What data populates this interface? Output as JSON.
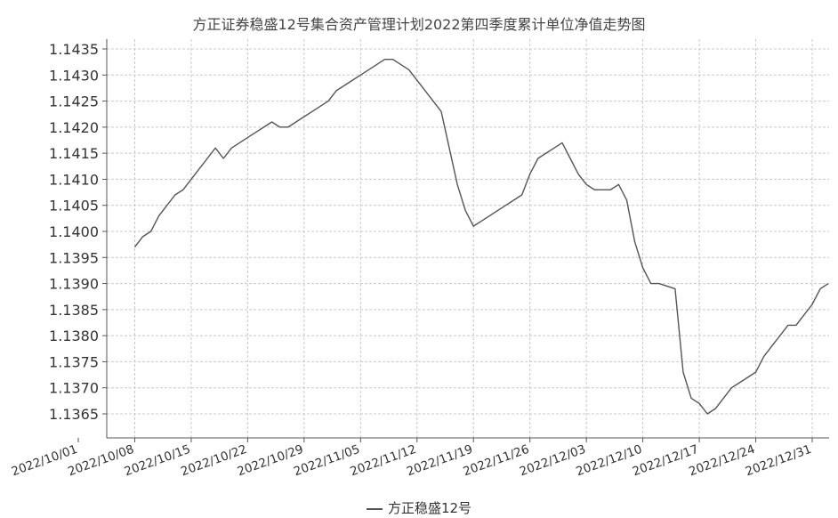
{
  "chart_data": {
    "type": "line",
    "title": "方正证券稳盛12号集合资产管理计划2022第四季度累计单位净值走势图",
    "xlabel": "",
    "ylabel": "",
    "ylim": [
      1.136,
      1.1435
    ],
    "yticks": [
      "1.1435",
      "1.1430",
      "1.1425",
      "1.1420",
      "1.1415",
      "1.1410",
      "1.1405",
      "1.1400",
      "1.1395",
      "1.1390",
      "1.1385",
      "1.1380",
      "1.1375",
      "1.1370",
      "1.1365"
    ],
    "xlim": [
      "2022-10-01",
      "2022-12-31"
    ],
    "xticks": [
      "2022/10/01",
      "2022/10/08",
      "2022/10/15",
      "2022/10/22",
      "2022/10/29",
      "2022/11/05",
      "2022/11/12",
      "2022/11/19",
      "2022/11/26",
      "2022/12/03",
      "2022/12/10",
      "2022/12/17",
      "2022/12/24",
      "2022/12/31"
    ],
    "grid": true,
    "legend_position": "bottom-center",
    "line_color": "#555555",
    "series": [
      {
        "name": "方正稳盛12号",
        "points": [
          [
            "2022-10-08",
            1.1397
          ],
          [
            "2022-10-09",
            1.1399
          ],
          [
            "2022-10-10",
            1.14
          ],
          [
            "2022-10-11",
            1.1403
          ],
          [
            "2022-10-12",
            1.1405
          ],
          [
            "2022-10-13",
            1.1407
          ],
          [
            "2022-10-14",
            1.1408
          ],
          [
            "2022-10-15",
            1.141
          ],
          [
            "2022-10-16",
            1.1412
          ],
          [
            "2022-10-17",
            1.1414
          ],
          [
            "2022-10-18",
            1.1416
          ],
          [
            "2022-10-19",
            1.1414
          ],
          [
            "2022-10-20",
            1.1416
          ],
          [
            "2022-10-21",
            1.1417
          ],
          [
            "2022-10-22",
            1.1418
          ],
          [
            "2022-10-23",
            1.1419
          ],
          [
            "2022-10-24",
            1.142
          ],
          [
            "2022-10-25",
            1.1421
          ],
          [
            "2022-10-26",
            1.142
          ],
          [
            "2022-10-27",
            1.142
          ],
          [
            "2022-10-28",
            1.1421
          ],
          [
            "2022-10-29",
            1.1422
          ],
          [
            "2022-10-30",
            1.1423
          ],
          [
            "2022-10-31",
            1.1424
          ],
          [
            "2022-11-01",
            1.1425
          ],
          [
            "2022-11-02",
            1.1427
          ],
          [
            "2022-11-03",
            1.1428
          ],
          [
            "2022-11-04",
            1.1429
          ],
          [
            "2022-11-05",
            1.143
          ],
          [
            "2022-11-06",
            1.1431
          ],
          [
            "2022-11-07",
            1.1432
          ],
          [
            "2022-11-08",
            1.1433
          ],
          [
            "2022-11-09",
            1.1433
          ],
          [
            "2022-11-10",
            1.1432
          ],
          [
            "2022-11-11",
            1.1431
          ],
          [
            "2022-11-12",
            1.1429
          ],
          [
            "2022-11-13",
            1.1427
          ],
          [
            "2022-11-14",
            1.1425
          ],
          [
            "2022-11-15",
            1.1423
          ],
          [
            "2022-11-16",
            1.1416
          ],
          [
            "2022-11-17",
            1.1409
          ],
          [
            "2022-11-18",
            1.1404
          ],
          [
            "2022-11-19",
            1.1401
          ],
          [
            "2022-11-20",
            1.1402
          ],
          [
            "2022-11-21",
            1.1403
          ],
          [
            "2022-11-22",
            1.1404
          ],
          [
            "2022-11-23",
            1.1405
          ],
          [
            "2022-11-24",
            1.1406
          ],
          [
            "2022-11-25",
            1.1407
          ],
          [
            "2022-11-26",
            1.1411
          ],
          [
            "2022-11-27",
            1.1414
          ],
          [
            "2022-11-28",
            1.1415
          ],
          [
            "2022-11-29",
            1.1416
          ],
          [
            "2022-11-30",
            1.1417
          ],
          [
            "2022-12-01",
            1.1414
          ],
          [
            "2022-12-02",
            1.1411
          ],
          [
            "2022-12-03",
            1.1409
          ],
          [
            "2022-12-04",
            1.1408
          ],
          [
            "2022-12-05",
            1.1408
          ],
          [
            "2022-12-06",
            1.1408
          ],
          [
            "2022-12-07",
            1.1409
          ],
          [
            "2022-12-08",
            1.1406
          ],
          [
            "2022-12-09",
            1.1398
          ],
          [
            "2022-12-10",
            1.1393
          ],
          [
            "2022-12-11",
            1.139
          ],
          [
            "2022-12-12",
            1.139
          ],
          [
            "2022-12-14",
            1.1389
          ],
          [
            "2022-12-15",
            1.1373
          ],
          [
            "2022-12-16",
            1.1368
          ],
          [
            "2022-12-17",
            1.1367
          ],
          [
            "2022-12-18",
            1.1365
          ],
          [
            "2022-12-19",
            1.1366
          ],
          [
            "2022-12-20",
            1.1368
          ],
          [
            "2022-12-21",
            1.137
          ],
          [
            "2022-12-22",
            1.1371
          ],
          [
            "2022-12-23",
            1.1372
          ],
          [
            "2022-12-24",
            1.1373
          ],
          [
            "2022-12-25",
            1.1376
          ],
          [
            "2022-12-26",
            1.1378
          ],
          [
            "2022-12-27",
            1.138
          ],
          [
            "2022-12-28",
            1.1382
          ],
          [
            "2022-12-29",
            1.1382
          ],
          [
            "2022-12-30",
            1.1384
          ],
          [
            "2022-12-31",
            1.1386
          ],
          [
            "2023-01-01",
            1.1389
          ],
          [
            "2023-01-02",
            1.139
          ]
        ]
      }
    ]
  }
}
